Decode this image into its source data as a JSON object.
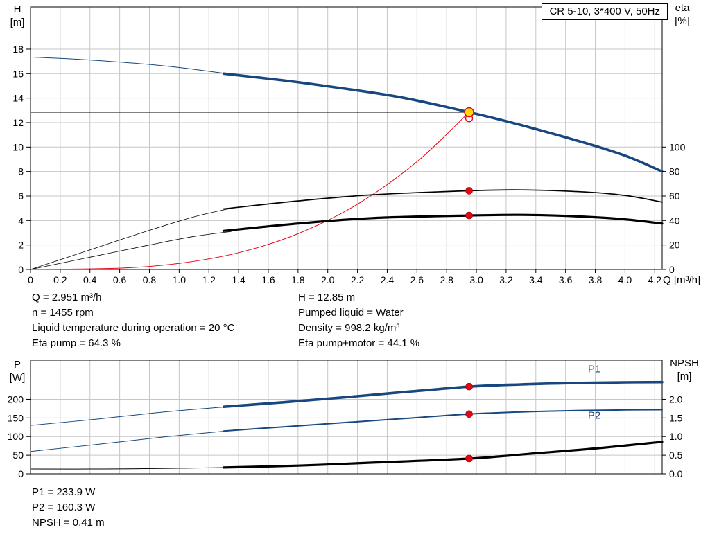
{
  "window": {
    "title_box": "CR 5-10, 3*400 V, 50Hz"
  },
  "colors": {
    "curve_blue": "#17477e",
    "red": "#e30613",
    "yellow": "#ffd800",
    "grid": "#c6c6c6",
    "black": "#000000",
    "duty_line": "#444444"
  },
  "info": {
    "left": [
      "Q = 2.951 m³/h",
      "n = 1455 rpm",
      "Liquid temperature during operation = 20 °C",
      "Eta pump = 64.3 %"
    ],
    "right": [
      "H = 12.85 m",
      "Pumped liquid = Water",
      "Density = 998.2 kg/m³",
      "Eta pump+motor = 44.1 %"
    ]
  },
  "results": [
    "P1 = 233.9 W",
    "P2 = 160.3 W",
    "NPSH = 0.41 m"
  ],
  "chart_data": [
    {
      "type": "line",
      "name": "pump-performance",
      "x_label": "Q [m³/h]",
      "y_left_label": [
        "H",
        "[m]"
      ],
      "y_right_label": [
        "eta",
        "[%]"
      ],
      "x_range": [
        0,
        4.25
      ],
      "y_left_range": [
        0,
        21.45
      ],
      "y_right_range": [
        0,
        214.5
      ],
      "x_ticks": [
        0,
        0.2,
        0.4,
        0.6,
        0.8,
        1,
        1.2,
        1.4,
        1.6,
        1.8,
        2,
        2.2,
        2.4,
        2.6,
        2.8,
        3,
        3.2,
        3.4,
        3.6,
        3.8,
        4,
        4.2
      ],
      "y_ticks": [
        0,
        2,
        4,
        6,
        8,
        10,
        12,
        14,
        16,
        18
      ],
      "right_ticks": [
        0,
        20,
        40,
        60,
        80,
        100
      ],
      "right_decimals": 0,
      "show_x_labels": true,
      "grid": true,
      "series": [
        {
          "name": "head-curve-extension",
          "color": "curve_blue",
          "width": 1,
          "axis": "left",
          "points": [
            [
              0,
              17.35
            ],
            [
              0.35,
              17.15
            ],
            [
              0.7,
              16.85
            ],
            [
              1.0,
              16.5
            ],
            [
              1.35,
              15.95
            ]
          ]
        },
        {
          "name": "head-curve",
          "color": "curve_blue",
          "width": 3.6,
          "axis": "left",
          "points": [
            [
              1.3,
              16.0
            ],
            [
              1.7,
              15.45
            ],
            [
              2.1,
              14.8
            ],
            [
              2.5,
              14.05
            ],
            [
              2.951,
              12.85
            ],
            [
              3.3,
              11.8
            ],
            [
              3.7,
              10.45
            ],
            [
              4.0,
              9.3
            ],
            [
              4.25,
              8.0
            ]
          ]
        },
        {
          "name": "system-curve",
          "color": "red",
          "width": 1,
          "axis": "left",
          "points": [
            [
              0,
              0
            ],
            [
              0.6,
              0.11
            ],
            [
              1.0,
              0.5
            ],
            [
              1.4,
              1.37
            ],
            [
              1.8,
              2.92
            ],
            [
              2.2,
              5.33
            ],
            [
              2.6,
              8.8
            ],
            [
              2.951,
              12.85
            ]
          ]
        },
        {
          "name": "eta-pump-extension",
          "color": "black",
          "width": 0.8,
          "axis": "right",
          "points": [
            [
              0,
              0
            ],
            [
              0.4,
              16
            ],
            [
              0.8,
              32
            ],
            [
              1.1,
              43
            ],
            [
              1.35,
              50
            ]
          ]
        },
        {
          "name": "eta-pump-curve",
          "color": "black",
          "width": 1.7,
          "axis": "right",
          "points": [
            [
              1.3,
              49.5
            ],
            [
              1.8,
              56
            ],
            [
              2.3,
              61
            ],
            [
              2.951,
              64.3
            ],
            [
              3.3,
              65
            ],
            [
              3.7,
              63.5
            ],
            [
              4.0,
              60.5
            ],
            [
              4.25,
              55
            ]
          ]
        },
        {
          "name": "eta-pump-motor-extension",
          "color": "black",
          "width": 0.8,
          "axis": "right",
          "points": [
            [
              0,
              0
            ],
            [
              0.4,
              10
            ],
            [
              0.8,
              20
            ],
            [
              1.1,
              27
            ],
            [
              1.35,
              31
            ]
          ]
        },
        {
          "name": "eta-pump-motor-curve",
          "color": "black",
          "width": 3.2,
          "axis": "right",
          "points": [
            [
              1.3,
              31.5
            ],
            [
              1.8,
              37.5
            ],
            [
              2.3,
              42
            ],
            [
              2.951,
              44.1
            ],
            [
              3.3,
              44.6
            ],
            [
              3.7,
              43.3
            ],
            [
              4.0,
              41
            ],
            [
              4.25,
              37.5
            ]
          ]
        }
      ],
      "markers": {
        "duty_lines": {
          "q": 2.951,
          "h": 12.85
        },
        "secondary_ring": {
          "q": 2.951,
          "h": 12.35
        },
        "duty_point": {
          "q": 2.951,
          "h": 12.85
        },
        "dots": [
          {
            "q": 2.951,
            "v": 64.3,
            "axis": "right"
          },
          {
            "q": 2.951,
            "v": 44.1,
            "axis": "right"
          }
        ]
      }
    },
    {
      "type": "line",
      "name": "power-npsh",
      "y_left_label": [
        "P",
        "[W]"
      ],
      "y_right_label": [
        "NPSH",
        "[m]"
      ],
      "x_range": [
        0,
        4.25
      ],
      "y_left_range": [
        0,
        305
      ],
      "y_right_range": [
        0,
        3.05
      ],
      "x_ticks": [
        0,
        0.2,
        0.4,
        0.6,
        0.8,
        1,
        1.2,
        1.4,
        1.6,
        1.8,
        2,
        2.2,
        2.4,
        2.6,
        2.8,
        3,
        3.2,
        3.4,
        3.6,
        3.8,
        4,
        4.2
      ],
      "y_ticks": [
        0,
        50,
        100,
        150,
        200
      ],
      "right_ticks": [
        0,
        0.5,
        1,
        1.5,
        2
      ],
      "right_decimals": 1,
      "show_x_labels": false,
      "grid": true,
      "series": [
        {
          "name": "p1-extension",
          "color": "curve_blue",
          "width": 1,
          "axis": "left",
          "points": [
            [
              0,
              130
            ],
            [
              0.45,
              147
            ],
            [
              0.9,
              166
            ],
            [
              1.35,
              181
            ]
          ]
        },
        {
          "name": "p1-curve",
          "color": "curve_blue",
          "width": 3.6,
          "axis": "left",
          "points": [
            [
              1.3,
              180
            ],
            [
              1.7,
              192
            ],
            [
              2.1,
              205
            ],
            [
              2.5,
              219
            ],
            [
              2.951,
              233.9
            ],
            [
              3.3,
              240
            ],
            [
              3.7,
              244
            ],
            [
              4.0,
              245.5
            ],
            [
              4.25,
              246
            ]
          ]
        },
        {
          "name": "p2-extension",
          "color": "curve_blue",
          "width": 1,
          "axis": "left",
          "points": [
            [
              0,
              60
            ],
            [
              0.45,
              79
            ],
            [
              0.9,
              99
            ],
            [
              1.35,
              116
            ]
          ]
        },
        {
          "name": "p2-curve",
          "color": "curve_blue",
          "width": 2,
          "axis": "left",
          "points": [
            [
              1.3,
              115
            ],
            [
              1.7,
              126
            ],
            [
              2.1,
              137
            ],
            [
              2.5,
              148
            ],
            [
              2.951,
              160.3
            ],
            [
              3.3,
              166
            ],
            [
              3.7,
              170
            ],
            [
              4.0,
              171.5
            ],
            [
              4.25,
              172
            ]
          ]
        },
        {
          "name": "npsh-extension",
          "color": "black",
          "width": 1,
          "axis": "right",
          "points": [
            [
              0,
              0.13
            ],
            [
              0.5,
              0.13
            ],
            [
              1.0,
              0.15
            ],
            [
              1.35,
              0.17
            ]
          ]
        },
        {
          "name": "npsh-curve",
          "color": "black",
          "width": 3.2,
          "axis": "right",
          "points": [
            [
              1.3,
              0.17
            ],
            [
              1.8,
              0.22
            ],
            [
              2.3,
              0.3
            ],
            [
              2.951,
              0.41
            ],
            [
              3.4,
              0.55
            ],
            [
              3.8,
              0.68
            ],
            [
              4.25,
              0.86
            ]
          ]
        }
      ],
      "series_labels": [
        {
          "text": "P1",
          "x": 3.75,
          "y": 272,
          "axis": "left"
        },
        {
          "text": "P2",
          "x": 3.75,
          "y": 148,
          "axis": "left"
        }
      ],
      "markers": {
        "dots": [
          {
            "q": 2.951,
            "v": 233.9,
            "axis": "left"
          },
          {
            "q": 2.951,
            "v": 160.3,
            "axis": "left"
          },
          {
            "q": 2.951,
            "v": 0.41,
            "axis": "right"
          }
        ]
      }
    }
  ]
}
